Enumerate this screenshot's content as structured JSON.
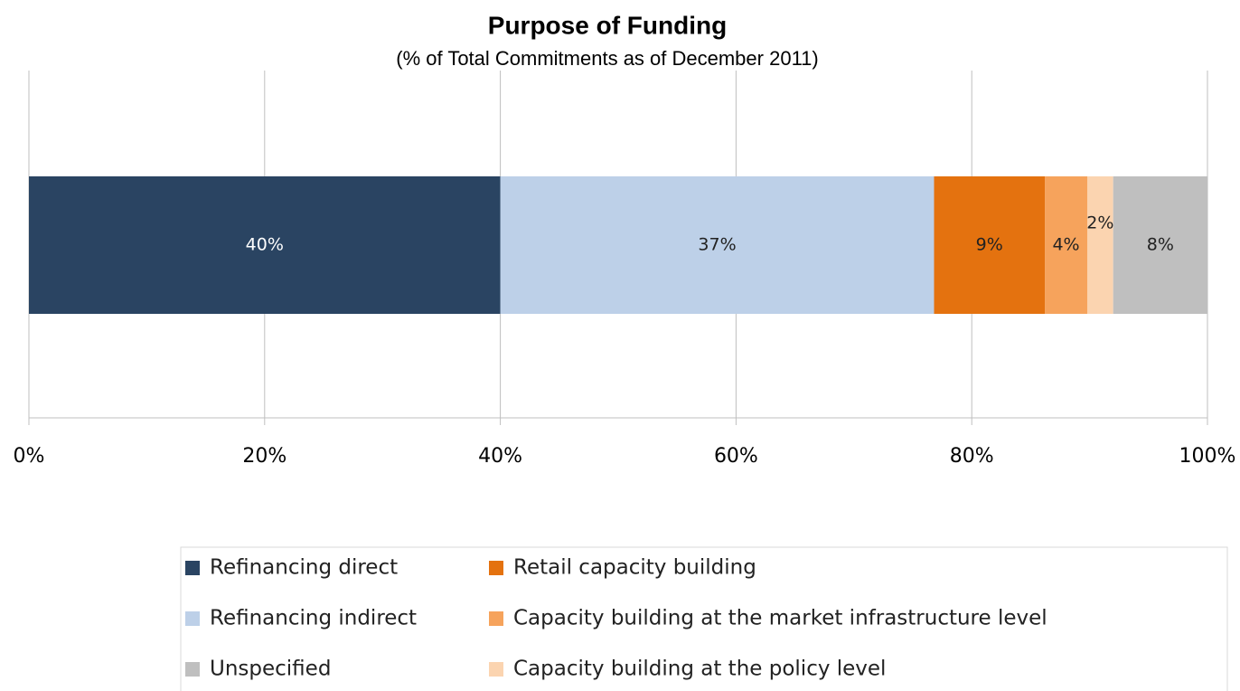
{
  "chart_data": {
    "type": "bar",
    "orientation": "horizontal",
    "stacked": true,
    "title": "Purpose of Funding",
    "subtitle": "(% of Total Commitments as of December 2011)",
    "categories": [
      null
    ],
    "series": [
      {
        "name": "Refinancing direct",
        "color": "#2a4462",
        "values": [
          40
        ],
        "value_labels": [
          "40%"
        ]
      },
      {
        "name": "Refinancing indirect",
        "color": "#bdd0e8",
        "values": [
          36.8
        ],
        "value_labels": [
          "37%"
        ]
      },
      {
        "name": "Retail capacity building",
        "color": "#e4720f",
        "values": [
          9.4
        ],
        "value_labels": [
          "9%"
        ]
      },
      {
        "name": "Capacity building at the market infrastructure level",
        "color": "#f6a35c",
        "values": [
          3.6
        ],
        "value_labels": [
          "4%"
        ]
      },
      {
        "name": "Capacity building at the policy level",
        "color": "#fbd4b0",
        "values": [
          2.2
        ],
        "value_labels": [
          "2%"
        ]
      },
      {
        "name": "Unspecified",
        "color": "#bfbfbf",
        "values": [
          8.0
        ],
        "value_labels": [
          "8%"
        ]
      }
    ],
    "xlim": [
      0,
      100
    ],
    "xticks": [
      {
        "value": 0,
        "label": "0%"
      },
      {
        "value": 20,
        "label": "20%"
      },
      {
        "value": 40,
        "label": "40%"
      },
      {
        "value": 60,
        "label": "60%"
      },
      {
        "value": 80,
        "label": "80%"
      },
      {
        "value": 100,
        "label": "100%"
      }
    ],
    "grid": true,
    "legend": "bottom"
  }
}
